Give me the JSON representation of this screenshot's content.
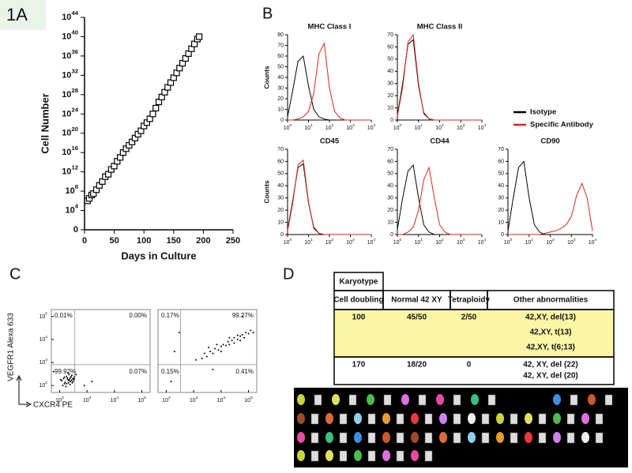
{
  "panels": [
    "1A",
    "B",
    "C",
    "D"
  ],
  "chart_data": [
    {
      "type": "scatter",
      "marker": "square",
      "xlabel": "Days in Culture",
      "ylabel": "Cell Number",
      "log_y": true,
      "x": [
        5,
        8,
        12,
        15,
        20,
        25,
        30,
        35,
        40,
        45,
        50,
        55,
        60,
        65,
        70,
        75,
        80,
        85,
        90,
        95,
        100,
        105,
        110,
        115,
        120,
        125,
        130,
        135,
        140,
        145,
        150,
        155,
        160,
        165,
        170,
        175,
        180,
        185,
        190,
        193
      ],
      "values": [
        1000000.0,
        3160000.0,
        15800000.0,
        31600000.0,
        200000000.0,
        1580000000.0,
        10000000000.0,
        100000000000.0,
        316000000000.0,
        3160000000000.0,
        15800000000000.0,
        158000000000000.0,
        1000000000000000.0,
        1e+16,
        6.3e+16,
        3.16e+17,
        1.58e+18,
        1e+19,
        6.3e+19,
        3.16e+20,
        3.16e+21,
        1.58e+22,
        1e+23,
        1e+24,
        1.58e+25,
        3.16e+26,
        3.16e+27,
        3.16e+28,
        3.16e+29,
        3.16e+30,
        3.16e+31,
        3.16e+32,
        3.16e+33,
        3.16e+34,
        3.16e+35,
        3.16e+36,
        3.16e+37,
        3.16e+38,
        3.16e+39,
        1e+40
      ],
      "xlim": [
        0,
        250
      ],
      "xticks": [
        0,
        50,
        100,
        150,
        200,
        250
      ],
      "ylim": [
        1,
        1e+44
      ],
      "yticks": [
        {
          "value": 1,
          "label": "0"
        },
        {
          "value": 10000.0,
          "label": "10",
          "exponent": "4"
        },
        {
          "value": 100000000.0,
          "label": "10",
          "exponent": "8"
        },
        {
          "value": 1000000000000.0,
          "label": "10",
          "exponent": "12"
        },
        {
          "value": 1e+16,
          "label": "10",
          "exponent": "16"
        },
        {
          "value": 1e+20,
          "label": "10",
          "exponent": "20"
        },
        {
          "value": 1e+24,
          "label": "10",
          "exponent": "24"
        },
        {
          "value": 1e+28,
          "label": "10",
          "exponent": "28"
        },
        {
          "value": 1e+32,
          "label": "10",
          "exponent": "32"
        },
        {
          "value": 1e+36,
          "label": "10",
          "exponent": "36"
        },
        {
          "value": 1e+40,
          "label": "10",
          "exponent": "40"
        },
        {
          "value": 1e+44,
          "label": "10",
          "exponent": "44"
        }
      ]
    },
    {
      "type": "line",
      "title": "MHC Class I",
      "ylabel": "Counts",
      "log_x": true,
      "x": [
        1,
        1.78,
        3.16,
        5.62,
        10,
        17.8,
        31.6,
        56.2,
        100,
        178,
        316,
        562,
        1000,
        1780,
        3160,
        5620,
        10000
      ],
      "xlim": [
        1,
        10000
      ],
      "xticks": [
        {
          "value": 1,
          "label": "10",
          "exponent": "0"
        },
        {
          "value": 10,
          "label": "10",
          "exponent": "1"
        },
        {
          "value": 100,
          "label": "10",
          "exponent": "2"
        },
        {
          "value": 1000,
          "label": "10",
          "exponent": "3"
        },
        {
          "value": 10000,
          "label": "10",
          "exponent": "4"
        }
      ],
      "ylim": [
        0,
        80
      ],
      "yticks": [
        0,
        10,
        20,
        30,
        40,
        50,
        60,
        70,
        80
      ],
      "series": [
        {
          "name": "Isotype",
          "color": "#000000",
          "values": [
            3,
            28,
            55,
            60,
            32,
            10,
            3,
            1,
            0,
            0,
            0,
            0,
            0,
            0,
            0,
            0,
            0
          ]
        },
        {
          "name": "Specific Antibody",
          "color": "#d9261c",
          "values": [
            0,
            0,
            1,
            3,
            8,
            25,
            62,
            72,
            30,
            8,
            2,
            0,
            0,
            0,
            0,
            0,
            0
          ]
        }
      ]
    },
    {
      "type": "line",
      "title": "MHC Class II",
      "log_x": true,
      "x": [
        1,
        1.78,
        3.16,
        5.62,
        10,
        17.8,
        31.6,
        56.2,
        100,
        178,
        316,
        562,
        1000,
        1780,
        3160,
        5620,
        10000
      ],
      "xlim": [
        1,
        10000
      ],
      "xticks": [
        {
          "value": 1,
          "label": "10",
          "exponent": "0"
        },
        {
          "value": 10,
          "label": "10",
          "exponent": "1"
        },
        {
          "value": 100,
          "label": "10",
          "exponent": "2"
        },
        {
          "value": 1000,
          "label": "10",
          "exponent": "3"
        },
        {
          "value": 10000,
          "label": "10",
          "exponent": "4"
        }
      ],
      "ylim": [
        0,
        70
      ],
      "yticks": [
        0,
        10,
        20,
        30,
        40,
        50,
        60,
        70
      ],
      "series": [
        {
          "name": "Isotype",
          "color": "#000000",
          "values": [
            4,
            30,
            62,
            66,
            28,
            6,
            1,
            0,
            0,
            0,
            0,
            0,
            0,
            0,
            0,
            0,
            0
          ]
        },
        {
          "name": "Specific Antibody",
          "color": "#d9261c",
          "values": [
            3,
            27,
            64,
            70,
            30,
            5,
            1,
            0,
            0,
            0,
            0,
            0,
            0,
            0,
            0,
            0,
            0
          ]
        }
      ]
    },
    {
      "type": "line",
      "title": "CD45",
      "ylabel": "Counts",
      "log_x": true,
      "x": [
        1,
        1.78,
        3.16,
        5.62,
        10,
        17.8,
        31.6,
        56.2,
        100,
        178,
        316,
        562,
        1000,
        1780,
        3160,
        5620,
        10000
      ],
      "xlim": [
        1,
        10000
      ],
      "xticks": [
        {
          "value": 1,
          "label": "10",
          "exponent": "0"
        },
        {
          "value": 10,
          "label": "10",
          "exponent": "1"
        },
        {
          "value": 100,
          "label": "10",
          "exponent": "2"
        },
        {
          "value": 1000,
          "label": "10",
          "exponent": "3"
        },
        {
          "value": 10000,
          "label": "10",
          "exponent": "4"
        }
      ],
      "ylim": [
        0,
        70
      ],
      "yticks": [
        0,
        10,
        20,
        30,
        40,
        50,
        60,
        70
      ],
      "series": [
        {
          "name": "Isotype",
          "color": "#000000",
          "values": [
            4,
            28,
            55,
            58,
            26,
            6,
            1,
            0,
            0,
            0,
            0,
            0,
            0,
            0,
            0,
            0,
            0
          ]
        },
        {
          "name": "Specific Antibody",
          "color": "#d9261c",
          "values": [
            3,
            26,
            57,
            61,
            27,
            5,
            1,
            0,
            0,
            0,
            0,
            0,
            0,
            0,
            0,
            0,
            0
          ]
        }
      ]
    },
    {
      "type": "line",
      "title": "CD44",
      "log_x": true,
      "x": [
        1,
        1.78,
        3.16,
        5.62,
        10,
        17.8,
        31.6,
        56.2,
        100,
        178,
        316,
        562,
        1000,
        1780,
        3160,
        5620,
        10000
      ],
      "xlim": [
        1,
        10000
      ],
      "xticks": [
        {
          "value": 1,
          "label": "10",
          "exponent": "0"
        },
        {
          "value": 10,
          "label": "10",
          "exponent": "1"
        },
        {
          "value": 100,
          "label": "10",
          "exponent": "2"
        },
        {
          "value": 1000,
          "label": "10",
          "exponent": "3"
        },
        {
          "value": 10000,
          "label": "10",
          "exponent": "4"
        }
      ],
      "ylim": [
        0,
        70
      ],
      "yticks": [
        0,
        10,
        20,
        30,
        40,
        50,
        60,
        70
      ],
      "series": [
        {
          "name": "Isotype",
          "color": "#000000",
          "values": [
            4,
            30,
            52,
            57,
            30,
            8,
            2,
            0,
            0,
            0,
            0,
            0,
            0,
            0,
            0,
            0,
            0
          ]
        },
        {
          "name": "Specific Antibody",
          "color": "#d9261c",
          "values": [
            0,
            0,
            2,
            6,
            20,
            45,
            55,
            30,
            8,
            2,
            0,
            0,
            0,
            0,
            0,
            0,
            0
          ]
        }
      ]
    },
    {
      "type": "line",
      "title": "CD90",
      "log_x": true,
      "x": [
        1,
        1.78,
        3.16,
        5.62,
        10,
        17.8,
        31.6,
        56.2,
        100,
        178,
        316,
        562,
        1000,
        1780,
        3160,
        5620,
        10000
      ],
      "xlim": [
        1,
        10000
      ],
      "xticks": [
        {
          "value": 1,
          "label": "10",
          "exponent": "0"
        },
        {
          "value": 10,
          "label": "10",
          "exponent": "1"
        },
        {
          "value": 100,
          "label": "10",
          "exponent": "2"
        },
        {
          "value": 1000,
          "label": "10",
          "exponent": "3"
        },
        {
          "value": 10000,
          "label": "10",
          "exponent": "4"
        }
      ],
      "ylim": [
        0,
        70
      ],
      "yticks": [
        0,
        10,
        20,
        30,
        40,
        50,
        60,
        70
      ],
      "series": [
        {
          "name": "Isotype",
          "color": "#000000",
          "values": [
            3,
            30,
            55,
            60,
            30,
            8,
            2,
            0,
            0,
            0,
            0,
            0,
            0,
            0,
            0,
            0,
            0
          ]
        },
        {
          "name": "Specific Antibody",
          "color": "#d9261c",
          "values": [
            0,
            0,
            0,
            0,
            0,
            0,
            0,
            1,
            2,
            3,
            5,
            8,
            15,
            32,
            42,
            30,
            3
          ]
        }
      ]
    },
    {
      "type": "scatter",
      "marker": "dot",
      "xlabel": "CXCR4 PE",
      "ylabel": "VEGFR1 Alexa 633",
      "log_x": true,
      "log_y": true,
      "x": [
        150,
        200,
        250,
        180,
        300,
        220,
        120,
        170,
        260,
        330,
        140,
        210,
        280,
        190,
        240,
        160,
        350,
        230,
        130,
        310,
        200,
        270,
        180,
        250,
        400,
        150,
        220,
        290,
        110,
        340,
        1500,
        60,
        800
      ],
      "values": [
        120,
        180,
        150,
        250,
        200,
        300,
        160,
        90,
        240,
        180,
        200,
        130,
        280,
        210,
        110,
        140,
        250,
        190,
        100,
        150,
        350,
        170,
        120,
        220,
        300,
        230,
        160,
        130,
        180,
        210,
        150,
        400,
        100
      ],
      "xlim": [
        50,
        200000
      ],
      "ylim": [
        50,
        200000
      ],
      "xticks": [
        {
          "value": 100,
          "label": "10",
          "exponent": "2"
        },
        {
          "value": 1000,
          "label": "10",
          "exponent": "3"
        },
        {
          "value": 10000,
          "label": "10",
          "exponent": "4"
        },
        {
          "value": 100000,
          "label": "10",
          "exponent": "5"
        }
      ],
      "yticks": [
        {
          "value": 100,
          "label": "10",
          "exponent": "2"
        },
        {
          "value": 1000,
          "label": "10",
          "exponent": "3"
        },
        {
          "value": 10000,
          "label": "10",
          "exponent": "4"
        },
        {
          "value": 100000,
          "label": "10",
          "exponent": "5"
        }
      ],
      "gate_x": 360,
      "gate_y": 800,
      "quadrant_labels": [
        "0.01%",
        "0.00%",
        "99.92%",
        "0.07%"
      ]
    },
    {
      "type": "scatter",
      "marker": "dot",
      "log_x": true,
      "log_y": true,
      "x": [
        1200,
        2000,
        2500,
        3000,
        4000,
        5000,
        6000,
        8000,
        10000,
        10000,
        12000,
        15000,
        18000,
        20000,
        25000,
        30000,
        30000,
        40000,
        50000,
        50000,
        60000,
        70000,
        80000,
        100000,
        120000,
        150000,
        7000,
        3500,
        20000,
        40000,
        300,
        150,
        200,
        5000,
        60000
      ],
      "values": [
        1300,
        1500,
        2500,
        1800,
        3000,
        2500,
        4000,
        3500,
        5000,
        3000,
        6000,
        5500,
        8000,
        6000,
        9000,
        7000,
        12000,
        10000,
        14000,
        9000,
        16000,
        12000,
        20000,
        18000,
        25000,
        20000,
        6000,
        4500,
        12000,
        15000,
        20000,
        150,
        3000,
        500,
        100000
      ],
      "xlim": [
        50,
        200000
      ],
      "ylim": [
        50,
        200000
      ],
      "xticks": [
        {
          "value": 100,
          "label": "10",
          "exponent": "2"
        },
        {
          "value": 1000,
          "label": "10",
          "exponent": "3"
        },
        {
          "value": 10000,
          "label": "10",
          "exponent": "4"
        },
        {
          "value": 100000,
          "label": "10",
          "exponent": "5"
        }
      ],
      "yticks": [],
      "gate_x": 330,
      "gate_y": 800,
      "quadrant_labels": [
        "0.17%",
        "99.27%",
        "0.15%",
        "0.41%"
      ]
    }
  ],
  "table": {
    "caption": "Karyotype",
    "header": [
      "Cell doubling",
      "Normal 42 XY",
      "Tetraploidy",
      "Other abnormalities"
    ],
    "rows": [
      [
        "100",
        "45/50",
        "2/50",
        [
          "42,XY, del(13)",
          "42,XY, t(13)",
          "42,XY, t(6;13)"
        ]
      ],
      [
        "170",
        "18/20",
        "0",
        [
          "42, XY, del (22)",
          "42, XY, del (20)"
        ]
      ]
    ]
  }
}
